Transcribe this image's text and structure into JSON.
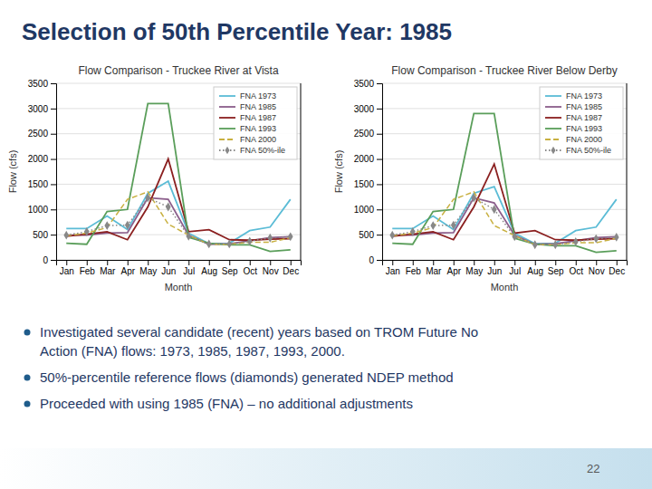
{
  "title": "Selection of 50th Percentile Year: 1985",
  "bullets": [
    [
      "Investigated several candidate (recent) years based on TROM Future No",
      "Action (FNA) flows:  1973, 1985, 1987, 1993, 2000."
    ],
    [
      "50%-percentile reference flows (diamonds) generated NDEP method"
    ],
    [
      "Proceeded with using 1985 (FNA) – no additional adjustments"
    ]
  ],
  "page_number": "22",
  "chart_data": [
    {
      "type": "line",
      "title": "Flow Comparison - Truckee River at Vista",
      "xlabel": "Month",
      "ylabel": "Flow (cfs)",
      "categories": [
        "Jan",
        "Feb",
        "Mar",
        "Apr",
        "May",
        "Jun",
        "Jul",
        "Aug",
        "Sep",
        "Oct",
        "Nov",
        "Dec"
      ],
      "series": [
        {
          "name": "FNA 1973",
          "color": "#5bbcd6",
          "line_style": "solid",
          "values": [
            620,
            620,
            870,
            600,
            1320,
            1560,
            530,
            320,
            330,
            580,
            650,
            1200
          ]
        },
        {
          "name": "FNA 1985",
          "color": "#8b5e8b",
          "line_style": "solid",
          "values": [
            490,
            490,
            530,
            540,
            1230,
            1200,
            490,
            310,
            320,
            380,
            440,
            460
          ]
        },
        {
          "name": "FNA 1987",
          "color": "#8b2020",
          "line_style": "solid",
          "values": [
            470,
            510,
            560,
            400,
            1050,
            2000,
            560,
            600,
            400,
            390,
            410,
            420
          ]
        },
        {
          "name": "FNA 1993",
          "color": "#5a9e5a",
          "line_style": "solid",
          "values": [
            330,
            310,
            960,
            1000,
            3100,
            3100,
            450,
            330,
            300,
            300,
            170,
            200
          ]
        },
        {
          "name": "FNA 2000",
          "color": "#c8b040",
          "line_style": "dashed",
          "values": [
            480,
            530,
            640,
            1200,
            1350,
            710,
            490,
            310,
            310,
            350,
            350,
            440
          ]
        },
        {
          "name": "FNA 50%-ile",
          "color": "#888888",
          "line_style": "dotted",
          "marker": "diamond",
          "values": [
            490,
            560,
            680,
            690,
            1230,
            1050,
            470,
            315,
            315,
            370,
            435,
            460
          ]
        }
      ],
      "ylim": [
        0,
        3500
      ],
      "yticks": [
        0,
        500,
        1000,
        1500,
        2000,
        2500,
        3000,
        3500
      ],
      "grid": true,
      "legend": "upper right"
    },
    {
      "type": "line",
      "title": "Flow Comparison - Truckee River Below Derby",
      "xlabel": "Month",
      "ylabel": "Flow (cfs)",
      "categories": [
        "Jan",
        "Feb",
        "Mar",
        "Apr",
        "May",
        "Jun",
        "Jul",
        "Aug",
        "Sep",
        "Oct",
        "Nov",
        "Dec"
      ],
      "series": [
        {
          "name": "FNA 1973",
          "color": "#5bbcd6",
          "line_style": "solid",
          "values": [
            620,
            620,
            870,
            600,
            1320,
            1450,
            530,
            320,
            330,
            580,
            650,
            1200
          ]
        },
        {
          "name": "FNA 1985",
          "color": "#8b5e8b",
          "line_style": "solid",
          "values": [
            490,
            490,
            530,
            540,
            1230,
            1130,
            490,
            310,
            320,
            380,
            440,
            460
          ]
        },
        {
          "name": "FNA 1987",
          "color": "#8b2020",
          "line_style": "solid",
          "values": [
            470,
            510,
            560,
            400,
            1050,
            1900,
            530,
            580,
            400,
            390,
            410,
            420
          ]
        },
        {
          "name": "FNA 1993",
          "color": "#5a9e5a",
          "line_style": "solid",
          "values": [
            330,
            310,
            960,
            1000,
            2900,
            2900,
            430,
            310,
            280,
            280,
            150,
            180
          ]
        },
        {
          "name": "FNA 2000",
          "color": "#c8b040",
          "line_style": "dashed",
          "values": [
            480,
            530,
            640,
            1200,
            1350,
            680,
            480,
            300,
            300,
            340,
            340,
            430
          ]
        },
        {
          "name": "FNA 50%-ile",
          "color": "#888888",
          "line_style": "dotted",
          "marker": "diamond",
          "values": [
            490,
            560,
            680,
            690,
            1230,
            1000,
            460,
            300,
            300,
            360,
            420,
            450
          ]
        }
      ],
      "ylim": [
        0,
        3500
      ],
      "yticks": [
        0,
        500,
        1000,
        1500,
        2000,
        2500,
        3000,
        3500
      ],
      "grid": true,
      "legend": "upper right"
    }
  ]
}
